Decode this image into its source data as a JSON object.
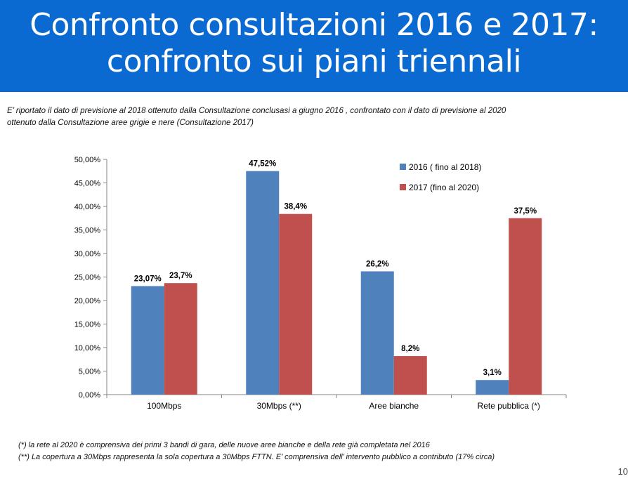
{
  "header": {
    "title_line1": "Confronto consultazioni 2016 e 2017:",
    "title_line2": "confronto sui piani triennali"
  },
  "intro": {
    "line1": "E’ riportato il dato di previsione al 2018 ottenuto dalla Consultazione conclusasi a giugno 2016 , confrontato con il dato di previsione al 2020",
    "line2": "ottenuto  dalla Consultazione aree grigie e nere (Consultazione 2017)"
  },
  "chart_data": {
    "type": "bar",
    "categories": [
      "100Mbps",
      "30Mbps (**)",
      "Aree bianche",
      "Rete pubblica (*)"
    ],
    "series": [
      {
        "name": "2016 ( fino al 2018)",
        "color": "#4f81bd",
        "values": [
          23.07,
          47.52,
          26.2,
          3.1
        ],
        "labels": [
          "23,07%",
          "47,52%",
          "26,2%",
          "3,1%"
        ]
      },
      {
        "name": "2017 (fino al 2020)",
        "color": "#c0504d",
        "values": [
          23.7,
          38.4,
          8.2,
          37.5
        ],
        "labels": [
          "23,7%",
          "38,4%",
          "8,2%",
          "37,5%"
        ]
      }
    ],
    "ylim": [
      0,
      50
    ],
    "yticks": [
      0,
      5,
      10,
      15,
      20,
      25,
      30,
      35,
      40,
      45,
      50
    ],
    "ytick_labels": [
      "0,00%",
      "5,00%",
      "10,00%",
      "15,00%",
      "20,00%",
      "25,00%",
      "30,00%",
      "35,00%",
      "40,00%",
      "45,00%",
      "50,00%"
    ],
    "grid": false,
    "legend": "top-right"
  },
  "footnotes": {
    "note1": "(*) la rete al 2020 è comprensiva dei primi 3 bandi di gara, delle nuove aree bianche e della rete già completata nel 2016",
    "note2": "(**) La copertura a 30Mbps rappresenta la sola copertura a 30Mbps FTTN. E’ comprensiva dell’ intervento pubblico a contributo (17% circa)"
  },
  "page_number": "10"
}
